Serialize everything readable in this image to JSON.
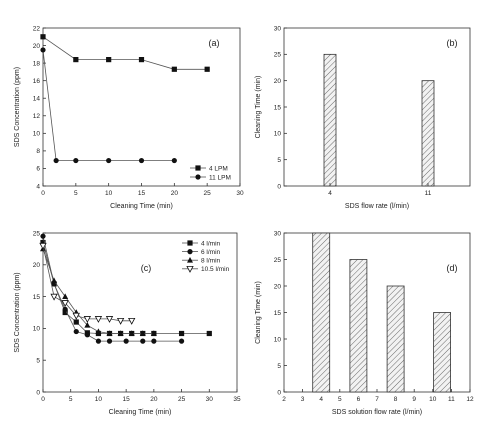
{
  "chart_data": [
    {
      "type": "line",
      "panel_label": "(a)",
      "xlabel": "Cleaning Time (min)",
      "ylabel": "SDS Concentration (ppm)",
      "xlim": [
        0,
        30
      ],
      "ylim": [
        4,
        22
      ],
      "xticks": [
        0,
        5,
        10,
        15,
        20,
        25,
        30
      ],
      "yticks": [
        4,
        6,
        8,
        10,
        12,
        14,
        16,
        18,
        20,
        22
      ],
      "grid": false,
      "legend": "bottom-right",
      "series": [
        {
          "name": "4 LPM",
          "marker": "square",
          "x": [
            0,
            5,
            10,
            15,
            20,
            25
          ],
          "y": [
            21,
            18.4,
            18.4,
            18.4,
            17.3,
            17.3
          ]
        },
        {
          "name": "11 LPM",
          "marker": "circle",
          "x": [
            0,
            2,
            5,
            10,
            15,
            20
          ],
          "y": [
            19.5,
            6.9,
            6.9,
            6.9,
            6.9,
            6.9
          ]
        }
      ]
    },
    {
      "type": "bar",
      "panel_label": "(b)",
      "xlabel": "SDS flow rate (l/min)",
      "ylabel": "Cleaning Time (min)",
      "categories": [
        "4",
        "11"
      ],
      "values": [
        25,
        20
      ],
      "ylim": [
        0,
        30
      ],
      "yticks": [
        0,
        5,
        10,
        15,
        20,
        25,
        30
      ],
      "grid": false
    },
    {
      "type": "line",
      "panel_label": "(c)",
      "xlabel": "Cleaning Time (min)",
      "ylabel": "SDS Concentration (ppm)",
      "xlim": [
        0,
        35
      ],
      "ylim": [
        0,
        25
      ],
      "xticks": [
        0,
        5,
        10,
        15,
        20,
        25,
        30,
        35
      ],
      "yticks": [
        0,
        5,
        10,
        15,
        20,
        25
      ],
      "grid": false,
      "legend": "top-right",
      "series": [
        {
          "name": "4 l/min",
          "marker": "square",
          "x": [
            0,
            2,
            4,
            6,
            8,
            10,
            12,
            14,
            16,
            18,
            20,
            25,
            30
          ],
          "y": [
            23.5,
            17,
            12.5,
            11,
            9.3,
            9.2,
            9.2,
            9.2,
            9.2,
            9.2,
            9.2,
            9.2,
            9.2
          ]
        },
        {
          "name": "6 l/min",
          "marker": "circle",
          "x": [
            0,
            2,
            4,
            6,
            8,
            10,
            12,
            15,
            18,
            20,
            25
          ],
          "y": [
            24.5,
            17,
            13,
            9.5,
            9,
            8,
            8,
            8,
            8,
            8,
            8
          ]
        },
        {
          "name": "8 l/min",
          "marker": "triangle",
          "x": [
            0,
            2,
            4,
            6,
            8,
            10,
            12,
            14,
            16,
            18,
            20
          ],
          "y": [
            22.5,
            17.5,
            15,
            12.5,
            10.5,
            9.5,
            9.2,
            9.2,
            9.2,
            9.2,
            9.2
          ]
        },
        {
          "name": "10.5 l/min",
          "marker": "triangle-down",
          "x": [
            0,
            2,
            4,
            6,
            8,
            10,
            12,
            14,
            16
          ],
          "y": [
            23,
            15,
            14,
            12,
            11.5,
            11.5,
            11.5,
            11.2,
            11.2
          ]
        }
      ]
    },
    {
      "type": "bar",
      "panel_label": "(d)",
      "xlabel": "SDS solution flow rate (l/min)",
      "ylabel": "Cleaning Time (min)",
      "x": [
        4,
        6,
        8,
        10.5
      ],
      "values": [
        30,
        25,
        20,
        15
      ],
      "xlim": [
        2,
        12
      ],
      "xticks": [
        2,
        3,
        4,
        5,
        6,
        7,
        8,
        9,
        10,
        11,
        12
      ],
      "ylim": [
        0,
        30
      ],
      "yticks": [
        0,
        5,
        10,
        15,
        20,
        25,
        30
      ],
      "grid": false
    }
  ]
}
